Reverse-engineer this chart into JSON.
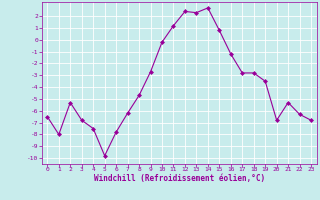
{
  "x": [
    0,
    1,
    2,
    3,
    4,
    5,
    6,
    7,
    8,
    9,
    10,
    11,
    12,
    13,
    14,
    15,
    16,
    17,
    18,
    19,
    20,
    21,
    22,
    23
  ],
  "y": [
    -6.5,
    -8.0,
    -5.3,
    -6.8,
    -7.5,
    -9.8,
    -7.8,
    -6.2,
    -4.7,
    -2.7,
    -0.2,
    1.2,
    2.4,
    2.3,
    2.7,
    0.8,
    -1.2,
    -2.8,
    -2.8,
    -3.5,
    -6.8,
    -5.3,
    -6.3,
    -6.8
  ],
  "xlabel": "Windchill (Refroidissement éolien,°C)",
  "ylim": [
    -10.5,
    3.2
  ],
  "xlim": [
    -0.5,
    23.5
  ],
  "yticks": [
    2,
    1,
    0,
    -1,
    -2,
    -3,
    -4,
    -5,
    -6,
    -7,
    -8,
    -9,
    -10
  ],
  "xticks": [
    0,
    1,
    2,
    3,
    4,
    5,
    6,
    7,
    8,
    9,
    10,
    11,
    12,
    13,
    14,
    15,
    16,
    17,
    18,
    19,
    20,
    21,
    22,
    23
  ],
  "line_color": "#990099",
  "marker": "D",
  "marker_size": 2,
  "bg_color": "#c8ecec",
  "grid_color": "#aed4d4",
  "tick_color": "#990099",
  "label_color": "#990099"
}
